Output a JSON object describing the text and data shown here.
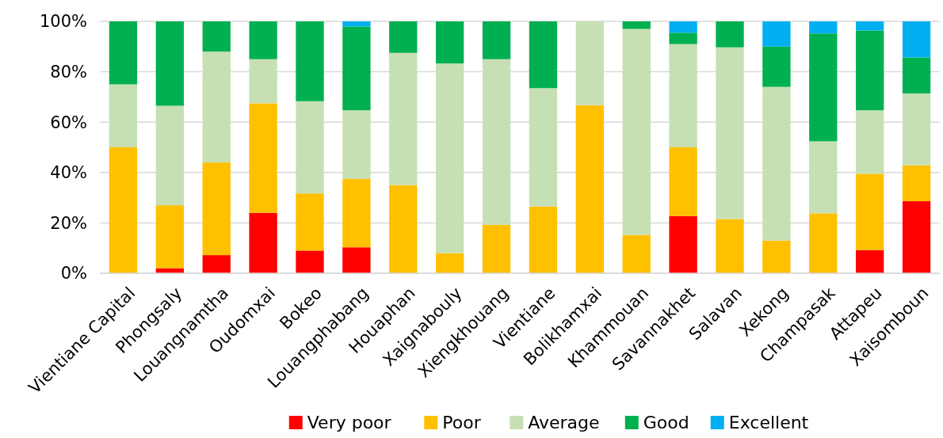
{
  "chart_data": {
    "type": "bar",
    "stacked": true,
    "categories": [
      "Vientiane Capital",
      "Phongsaly",
      "Louangnamtha",
      "Oudomxai",
      "Bokeo",
      "Louangphabang",
      "Houaphan",
      "Xaignabouly",
      "Xiengkhouang",
      "Vientiane",
      "Bolikhamxai",
      "Khammouan",
      "Savannakhet",
      "Salavan",
      "Xekong",
      "Champasak",
      "Attapeu",
      "Xaisomboun"
    ],
    "series": [
      {
        "name": "Very poor",
        "color": "#ff0000",
        "values": [
          0,
          2,
          7.2,
          24,
          9,
          10.3,
          0,
          0,
          0,
          0,
          0,
          0,
          22.7,
          0,
          0,
          0,
          9.2,
          28.6
        ]
      },
      {
        "name": "Poor",
        "color": "#ffc000",
        "values": [
          50,
          25,
          36.8,
          43.5,
          22.7,
          27.2,
          35,
          8,
          19.2,
          26.5,
          66.7,
          15.2,
          27.3,
          21.5,
          13,
          23.8,
          30.3,
          14.3
        ]
      },
      {
        "name": "Average",
        "color": "#c6e0b4",
        "values": [
          25,
          39.5,
          44,
          17.5,
          36.6,
          27.2,
          52.5,
          75.3,
          65.8,
          47,
          33.3,
          81.8,
          41,
          68.2,
          61,
          28.6,
          25.2,
          28.5
        ]
      },
      {
        "name": "Good",
        "color": "#00b050",
        "values": [
          25,
          33.5,
          12,
          15,
          31.7,
          33.3,
          12.5,
          16.7,
          15,
          26.5,
          0,
          3,
          4.5,
          10.3,
          16,
          42.8,
          31.7,
          14.3
        ]
      },
      {
        "name": "Excellent",
        "color": "#00b0f0",
        "values": [
          0,
          0,
          0,
          0,
          0,
          2,
          0,
          0,
          0,
          0,
          0,
          0,
          4.5,
          0,
          10,
          4.8,
          3.6,
          14.3
        ]
      }
    ],
    "ylim": [
      0,
      100
    ],
    "yticks": [
      {
        "value": 0,
        "label": "0%"
      },
      {
        "value": 20,
        "label": "20%"
      },
      {
        "value": 40,
        "label": "40%"
      },
      {
        "value": 60,
        "label": "60%"
      },
      {
        "value": 80,
        "label": "80%"
      },
      {
        "value": 100,
        "label": "100%"
      }
    ],
    "grid": "y",
    "legend": "bottom"
  }
}
